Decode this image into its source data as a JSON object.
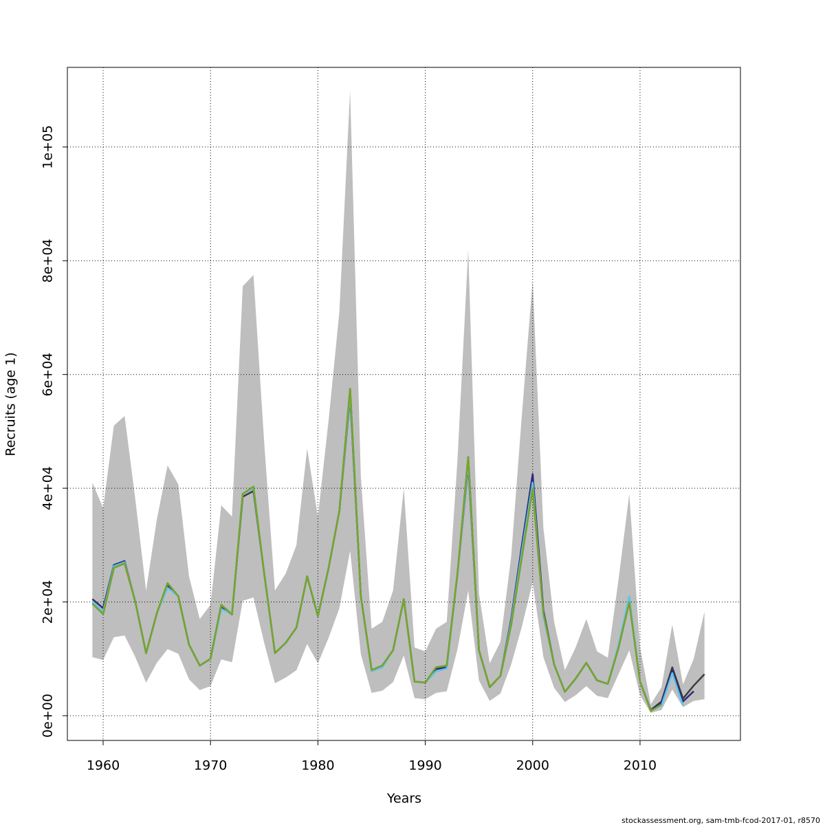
{
  "chart_data": {
    "type": "line",
    "xlabel": "Years",
    "ylabel": "Recruits (age 1)",
    "footer": "stockassessment.org, sam-tmb-fcod-2017-01, r8570",
    "x": [
      1959,
      1960,
      1961,
      1962,
      1963,
      1964,
      1965,
      1966,
      1967,
      1968,
      1969,
      1970,
      1971,
      1972,
      1973,
      1974,
      1975,
      1976,
      1977,
      1978,
      1979,
      1980,
      1981,
      1982,
      1983,
      1984,
      1985,
      1986,
      1987,
      1988,
      1989,
      1990,
      1991,
      1992,
      1993,
      1994,
      1995,
      1996,
      1997,
      1998,
      1999,
      2000,
      2001,
      2002,
      2003,
      2004,
      2005,
      2006,
      2007,
      2008,
      2009,
      2010,
      2011,
      2012,
      2013,
      2014,
      2015,
      2016
    ],
    "band": {
      "color": "#bebebe",
      "upper": [
        41000,
        36500,
        51000,
        52700,
        38000,
        22000,
        34500,
        44000,
        40700,
        24500,
        17000,
        19500,
        37000,
        35000,
        75500,
        77500,
        48000,
        22000,
        25000,
        30000,
        47000,
        35000,
        52000,
        71000,
        110000,
        42000,
        15300,
        16500,
        22000,
        40000,
        12000,
        11300,
        15300,
        16500,
        45000,
        82000,
        21500,
        9200,
        13000,
        28000,
        53000,
        76500,
        33000,
        16500,
        8000,
        12000,
        17000,
        11300,
        10200,
        24000,
        39000,
        12000,
        2000,
        5000,
        16000,
        5500,
        10000,
        18300
      ],
      "lower": [
        10300,
        9800,
        13800,
        14100,
        10300,
        5800,
        9300,
        11700,
        10900,
        6400,
        4500,
        5200,
        9900,
        9400,
        20200,
        20800,
        12800,
        5700,
        6700,
        8000,
        12600,
        9200,
        13700,
        18900,
        29000,
        10800,
        4000,
        4400,
        5900,
        10600,
        3100,
        2900,
        4000,
        4300,
        11700,
        22000,
        6200,
        2600,
        3900,
        9000,
        15700,
        23500,
        10300,
        4900,
        2400,
        3600,
        5200,
        3500,
        3100,
        7300,
        11500,
        3600,
        500,
        1000,
        4600,
        1500,
        2600,
        2900
      ]
    },
    "series": [
      {
        "color": "#3c3c3c",
        "values": [
          19700,
          17900,
          26000,
          26800,
          20000,
          11000,
          18000,
          23300,
          21000,
          12500,
          8800,
          10000,
          19500,
          17800,
          38500,
          39500,
          25000,
          11000,
          12800,
          15500,
          24500,
          17500,
          26000,
          36000,
          57500,
          21000,
          8000,
          8800,
          11500,
          20500,
          6000,
          5800,
          8500,
          8800,
          25000,
          45500,
          11500,
          5000,
          7000,
          16000,
          28000,
          40000,
          18000,
          9000,
          4200,
          6500,
          9300,
          6200,
          5600,
          12000,
          20000,
          6000,
          1000,
          2500,
          8500,
          3000,
          5300,
          7300
        ]
      },
      {
        "color": "#2e2a7a",
        "values": [
          20500,
          18900,
          26500,
          27200,
          20000,
          11000,
          18000,
          22800,
          21000,
          12500,
          8800,
          10000,
          19000,
          17800,
          39000,
          40000,
          25000,
          11000,
          12800,
          15500,
          24500,
          17500,
          26000,
          36000,
          56000,
          21000,
          8000,
          8800,
          11500,
          20500,
          6000,
          5800,
          8200,
          8500,
          25000,
          44000,
          11500,
          5000,
          7000,
          17000,
          30000,
          42500,
          18500,
          9000,
          4200,
          6500,
          9300,
          6200,
          5600,
          12000,
          20500,
          6000,
          900,
          2300,
          8000,
          2500,
          4300,
          null
        ]
      },
      {
        "color": "#5ec4ea",
        "values": [
          20000,
          18300,
          26300,
          27000,
          20000,
          11000,
          18000,
          22500,
          21000,
          12500,
          8800,
          10000,
          18800,
          17800,
          39000,
          40000,
          25000,
          11000,
          12800,
          15500,
          24500,
          17500,
          26000,
          36000,
          56500,
          21000,
          7800,
          8500,
          11500,
          20500,
          6000,
          5800,
          7800,
          8300,
          25000,
          44500,
          11500,
          5000,
          7000,
          16500,
          29000,
          41000,
          17500,
          9000,
          4200,
          6500,
          9300,
          6200,
          5600,
          12500,
          21000,
          6000,
          900,
          1800,
          7500,
          1800,
          null,
          null
        ]
      },
      {
        "color": "#76a52a",
        "values": [
          19700,
          17900,
          26000,
          26800,
          20000,
          11000,
          18000,
          23300,
          21000,
          12500,
          8800,
          10000,
          19500,
          17800,
          39000,
          40300,
          25000,
          11000,
          12800,
          15500,
          24500,
          17500,
          26000,
          36000,
          57500,
          21000,
          8000,
          8800,
          11500,
          20500,
          6000,
          5800,
          8500,
          8800,
          25000,
          45500,
          11500,
          5000,
          7000,
          16000,
          28000,
          40000,
          18000,
          9000,
          4200,
          6500,
          9300,
          6200,
          5600,
          12000,
          20000,
          6000,
          800,
          2000,
          null,
          null,
          null,
          null
        ]
      }
    ],
    "xlim": [
      1956.67,
      2019.35
    ],
    "ylim": [
      -4350,
      114000
    ],
    "xticks": [
      1960,
      1970,
      1980,
      1990,
      2000,
      2010
    ],
    "yticks": [
      {
        "value": 0,
        "label": "0e+00"
      },
      {
        "value": 20000,
        "label": "2e+04"
      },
      {
        "value": 40000,
        "label": "4e+04"
      },
      {
        "value": 60000,
        "label": "6e+04"
      },
      {
        "value": 80000,
        "label": "8e+04"
      },
      {
        "value": 100000,
        "label": "1e+05"
      }
    ],
    "grid": true
  }
}
